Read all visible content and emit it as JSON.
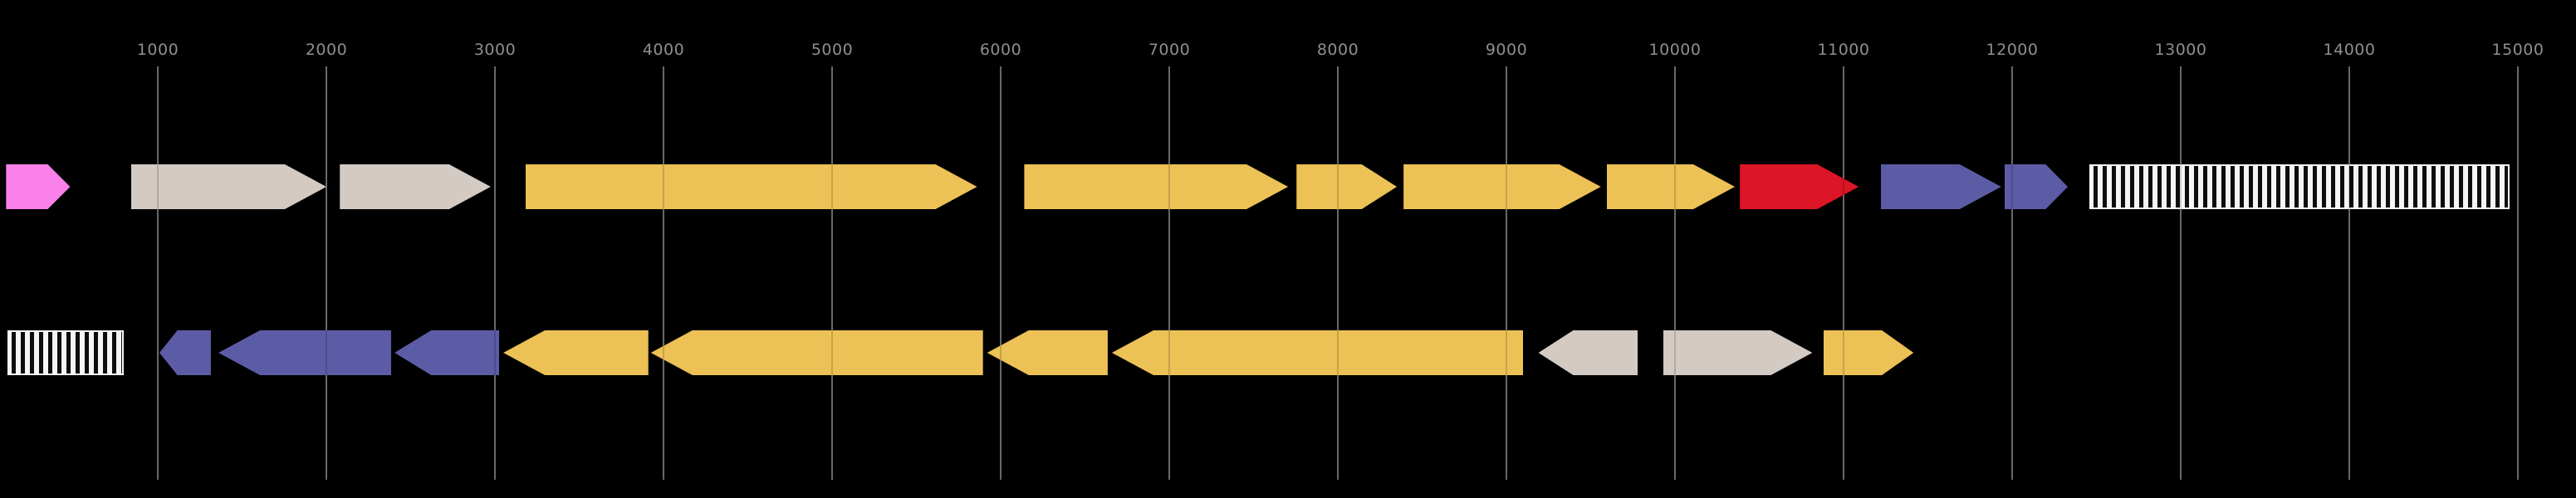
{
  "figure": {
    "background_color": "#000000",
    "description_labels": []
  },
  "chart_data": {
    "type": "gene_map",
    "title": "",
    "xlabel": "",
    "ylabel": "",
    "x_axis": {
      "unit": "bp",
      "ticks": [
        1000,
        2000,
        3000,
        4000,
        5000,
        6000,
        7000,
        8000,
        9000,
        10000,
        11000,
        12000,
        13000,
        14000,
        15000
      ],
      "tick_step": 1000,
      "visible_range_bp": [
        60,
        15350
      ],
      "gridlines": true,
      "gridline_color": "#7d7d7d",
      "tick_label_color": "#8e8e8e"
    },
    "palette": {
      "pink": "#fa80ea",
      "beige": "#d3cac3",
      "yellow": "#ecc156",
      "red": "#dc1527",
      "purple": "#5c5ca6",
      "hatch_white": "#f5f5f5",
      "hatch_black": "#0d0d0d"
    },
    "tracks": [
      {
        "name": "track-1",
        "features": [
          {
            "id": "t1-f1",
            "shape": "arrow",
            "strand": "+",
            "start": 100,
            "end": 480,
            "color": "pink"
          },
          {
            "id": "t1-f2",
            "shape": "arrow",
            "strand": "+",
            "start": 840,
            "end": 2000,
            "color": "beige"
          },
          {
            "id": "t1-f3",
            "shape": "arrow",
            "strand": "+",
            "start": 2080,
            "end": 2975,
            "color": "beige"
          },
          {
            "id": "t1-f4",
            "shape": "arrow",
            "strand": "+",
            "start": 3180,
            "end": 5860,
            "color": "yellow"
          },
          {
            "id": "t1-f5",
            "shape": "arrow",
            "strand": "+",
            "start": 6140,
            "end": 7705,
            "color": "yellow"
          },
          {
            "id": "t1-f6",
            "shape": "arrow",
            "strand": "+",
            "start": 7755,
            "end": 8350,
            "color": "yellow"
          },
          {
            "id": "t1-f7",
            "shape": "arrow",
            "strand": "+",
            "start": 8390,
            "end": 9560,
            "color": "yellow"
          },
          {
            "id": "t1-f8",
            "shape": "arrow",
            "strand": "+",
            "start": 9595,
            "end": 10355,
            "color": "yellow"
          },
          {
            "id": "t1-f9",
            "shape": "arrow",
            "strand": "+",
            "start": 10385,
            "end": 11090,
            "color": "red"
          },
          {
            "id": "t1-f10",
            "shape": "arrow",
            "strand": "+",
            "start": 11220,
            "end": 11935,
            "color": "purple"
          },
          {
            "id": "t1-f11",
            "shape": "arrow",
            "strand": "+",
            "start": 11955,
            "end": 12330,
            "color": "purple"
          },
          {
            "id": "t1-f12",
            "shape": "hatched_box",
            "strand": "none",
            "start": 12460,
            "end": 14950,
            "color": "hatched"
          }
        ]
      },
      {
        "name": "track-2",
        "features": [
          {
            "id": "t2-f1",
            "shape": "hatched_box",
            "strand": "none",
            "start": 110,
            "end": 800,
            "color": "hatched"
          },
          {
            "id": "t2-f2",
            "shape": "arrow",
            "strand": "-",
            "start": 1010,
            "end": 1315,
            "color": "purple"
          },
          {
            "id": "t2-f3",
            "shape": "arrow",
            "strand": "-",
            "start": 1360,
            "end": 2385,
            "color": "purple"
          },
          {
            "id": "t2-f4",
            "shape": "arrow",
            "strand": "-",
            "start": 2405,
            "end": 3025,
            "color": "purple"
          },
          {
            "id": "t2-f5",
            "shape": "arrow",
            "strand": "-",
            "start": 3050,
            "end": 3910,
            "color": "yellow"
          },
          {
            "id": "t2-f6",
            "shape": "arrow",
            "strand": "-",
            "start": 3925,
            "end": 5895,
            "color": "yellow"
          },
          {
            "id": "t2-f7",
            "shape": "arrow",
            "strand": "-",
            "start": 5920,
            "end": 6635,
            "color": "yellow"
          },
          {
            "id": "t2-f8",
            "shape": "arrow",
            "strand": "-",
            "start": 6660,
            "end": 9100,
            "color": "yellow"
          },
          {
            "id": "t2-f9",
            "shape": "arrow",
            "strand": "-",
            "start": 9190,
            "end": 9780,
            "color": "beige"
          },
          {
            "id": "t2-f10",
            "shape": "arrow",
            "strand": "+",
            "start": 9930,
            "end": 10815,
            "color": "beige"
          },
          {
            "id": "t2-f11",
            "shape": "arrow",
            "strand": "+",
            "start": 10880,
            "end": 11415,
            "color": "yellow"
          }
        ]
      }
    ],
    "legend": null,
    "grid_on": true
  }
}
